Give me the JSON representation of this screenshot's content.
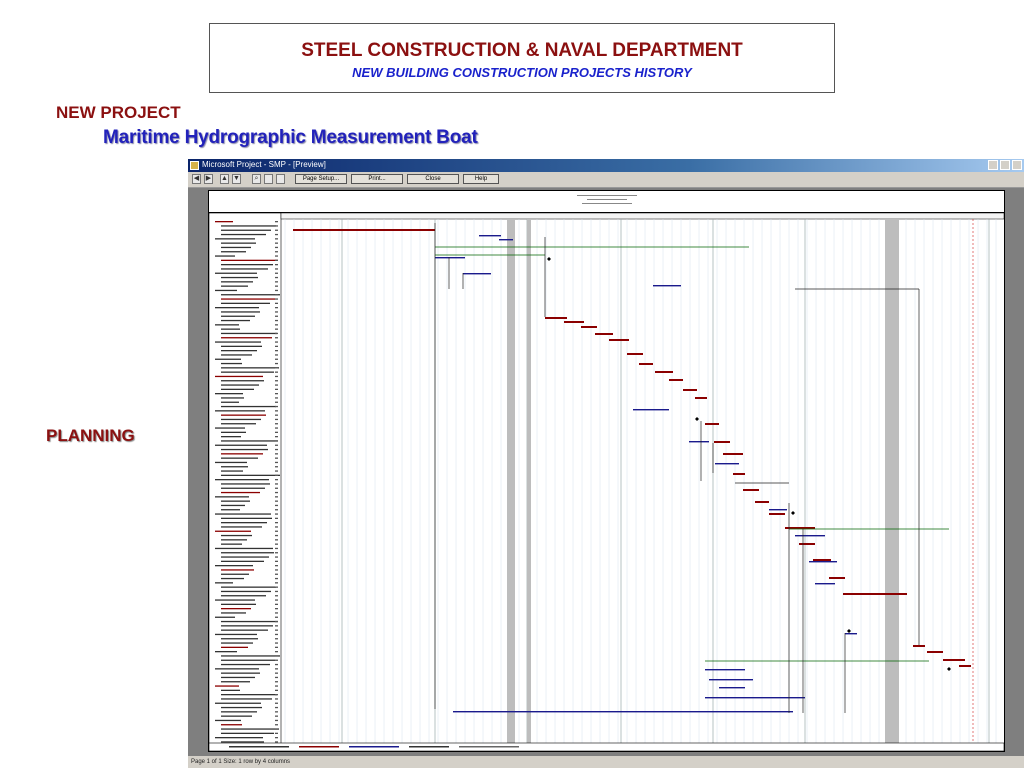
{
  "header": {
    "title": "STEEL CONSTRUCTION & NAVAL DEPARTMENT",
    "subtitle": "NEW BUILDING CONSTRUCTION PROJECTS HISTORY"
  },
  "section_label": "NEW PROJECT",
  "project_name": "Maritime Hydrographic Measurement Boat",
  "side_label": "PLANNING",
  "app_window": {
    "title": "Microsoft Project - SMP - [Preview]",
    "toolbar_buttons": [
      "Page Setup...",
      "Print...",
      "Close",
      "Help"
    ],
    "status": "Page 1 of 1   Size: 1 row by 4 columns"
  },
  "colors": {
    "brand_red": "#8b1010",
    "brand_blue": "#1a22cc",
    "gantt_critical": "#8b0000",
    "gantt_task": "#1a1a8c",
    "gantt_link": "#006400"
  }
}
